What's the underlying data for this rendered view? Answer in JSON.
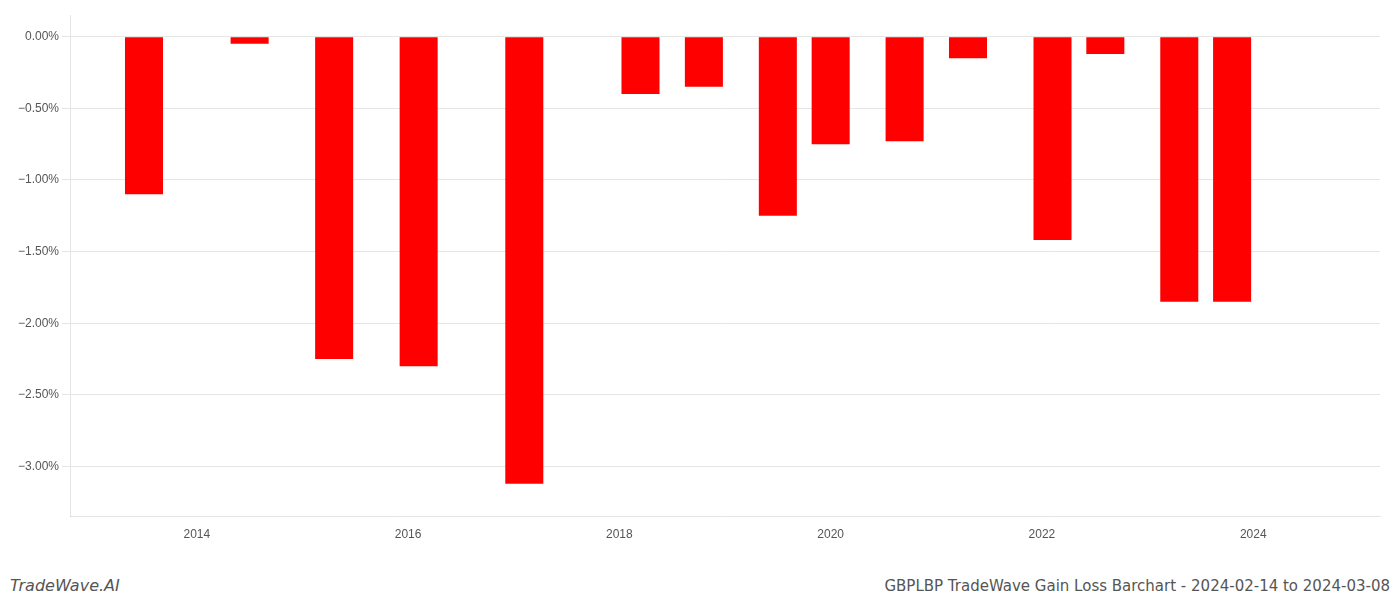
{
  "chart_data": {
    "type": "bar",
    "title": "GBPLBP TradeWave Gain Loss Barchart - 2024-02-14 to 2024-03-08",
    "annotations": [
      "TradeWave.AI"
    ],
    "x": [
      2013.5,
      2014.5,
      2015.3,
      2016.1,
      2017.1,
      2018.2,
      2018.8,
      2019.5,
      2020.0,
      2020.7,
      2021.3,
      2022.1,
      2022.6,
      2023.3,
      2023.8
    ],
    "values": [
      -1.1,
      -0.05,
      -2.25,
      -2.3,
      -3.12,
      -0.4,
      -0.35,
      -1.25,
      -0.75,
      -0.73,
      -0.15,
      -1.42,
      -0.12,
      -1.85,
      -1.85
    ],
    "color": "#ff0000",
    "xlim": [
      2012.8,
      2025.2
    ],
    "xticks": [
      2014,
      2016,
      2018,
      2020,
      2022,
      2024
    ],
    "ylim": [
      -3.35,
      0.15
    ],
    "yticks": [
      {
        "value": 0.0,
        "label": "0.00%"
      },
      {
        "value": -0.5,
        "label": "−0.50%"
      },
      {
        "value": -1.0,
        "label": "−1.00%"
      },
      {
        "value": -1.5,
        "label": "−1.50%"
      },
      {
        "value": -2.0,
        "label": "−2.00%"
      },
      {
        "value": -2.5,
        "label": "−2.50%"
      },
      {
        "value": -3.0,
        "label": "−3.00%"
      }
    ],
    "grid": true
  }
}
